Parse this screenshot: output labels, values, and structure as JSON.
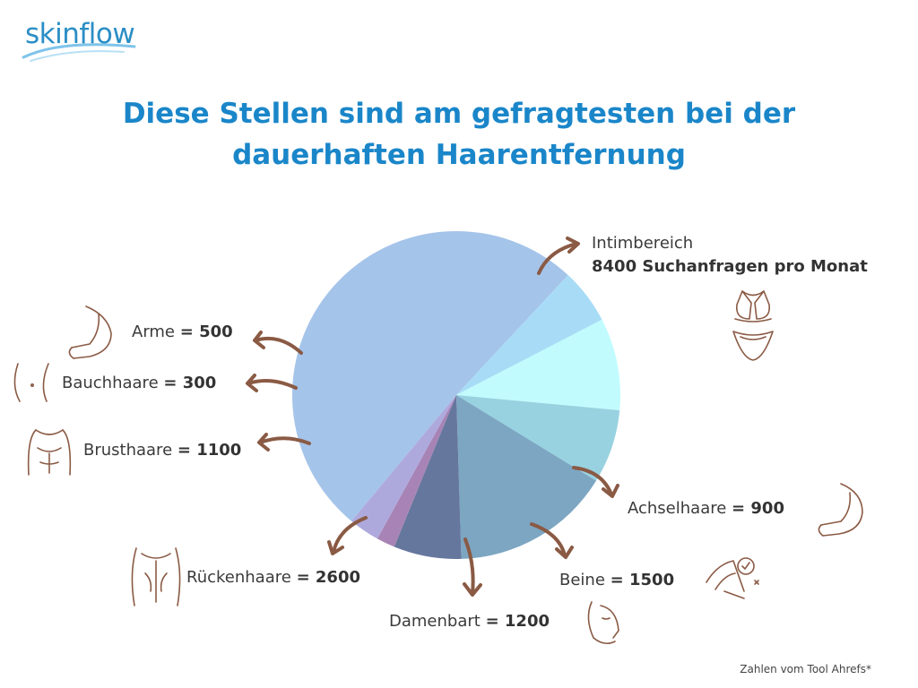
{
  "brand": {
    "logo_text": "skinflow"
  },
  "title_line1": "Diese Stellen sind am gefragtesten bei der",
  "title_line2": "dauerhaften Haarentfernung",
  "footnote": "Zahlen vom Tool Ahrefs*",
  "colors": {
    "title": "#1a86c9",
    "arrow": "#8a5a44",
    "icon": "#8a5a44"
  },
  "chart_data": {
    "type": "pie",
    "title": "Diese Stellen sind am gefragtesten bei der dauerhaften Haarentfernung",
    "slices": [
      {
        "label": "Intimbereich",
        "value": 8400,
        "value_text": "8400 Suchanfragen pro Monat",
        "color": "#a5c4ea"
      },
      {
        "label": "Achselhaare",
        "value": 900,
        "value_text": "= 900",
        "color": "#a8dcf6"
      },
      {
        "label": "Beine",
        "value": 1500,
        "value_text": "= 1500",
        "color": "#c2fbfd"
      },
      {
        "label": "Damenbart",
        "value": 1200,
        "value_text": "= 1200",
        "color": "#98d2e0"
      },
      {
        "label": "Rückenhaare",
        "value": 2600,
        "value_text": "= 2600",
        "color": "#7ca6c2"
      },
      {
        "label": "Brusthaare",
        "value": 1100,
        "value_text": "= 1100",
        "color": "#66779e"
      },
      {
        "label": "Bauchhaare",
        "value": 300,
        "value_text": "= 300",
        "color": "#a784b5"
      },
      {
        "label": "Arme",
        "value": 500,
        "value_text": "= 500",
        "color": "#aea9dd"
      }
    ]
  }
}
